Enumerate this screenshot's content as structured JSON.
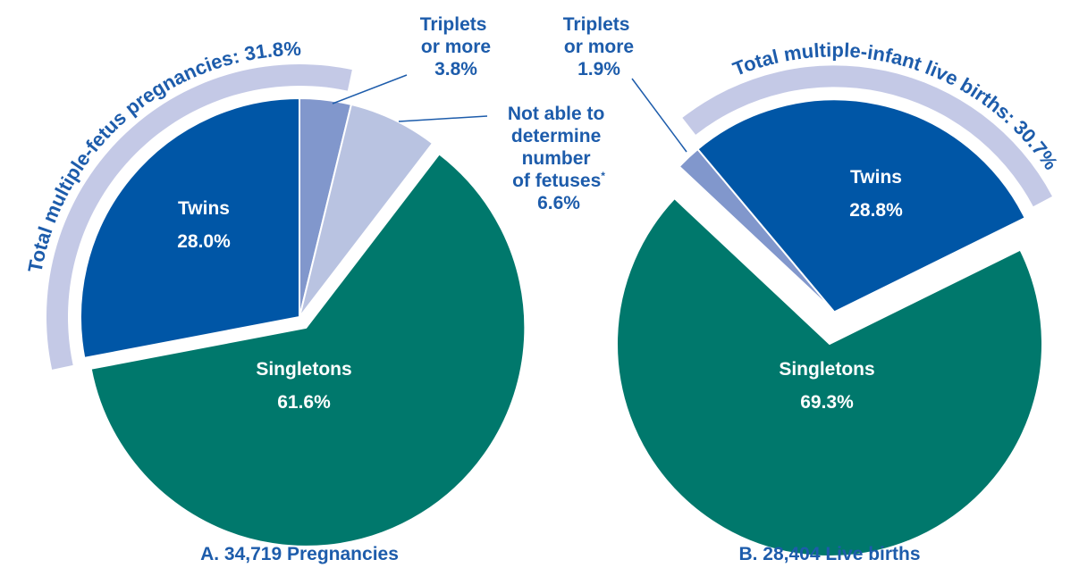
{
  "chart_data": [
    {
      "type": "pie",
      "title": "A. 34,719 Pregnancies",
      "annotation": "Total multiple-fetus pregnancies: 31.8%",
      "categories": [
        "Triplets or more",
        "Not able to determine number of fetuses*",
        "Singletons",
        "Twins"
      ],
      "values": [
        3.8,
        6.6,
        61.6,
        28.0
      ],
      "value_labels": [
        "3.8%",
        "6.6%",
        "61.6%",
        "28.0%"
      ],
      "colors": [
        "#8197cc",
        "#b9c3e1",
        "#00786c",
        "#0056a6"
      ]
    },
    {
      "type": "pie",
      "title": "B. 28,404 Live births",
      "annotation": "Total multiple-infant live births: 30.7%",
      "categories": [
        "Triplets or more",
        "Twins",
        "Singletons"
      ],
      "values": [
        1.9,
        28.8,
        69.3
      ],
      "value_labels": [
        "1.9%",
        "28.8%",
        "69.3%"
      ],
      "colors": [
        "#8197cc",
        "#0056a6",
        "#00786c"
      ]
    }
  ]
}
